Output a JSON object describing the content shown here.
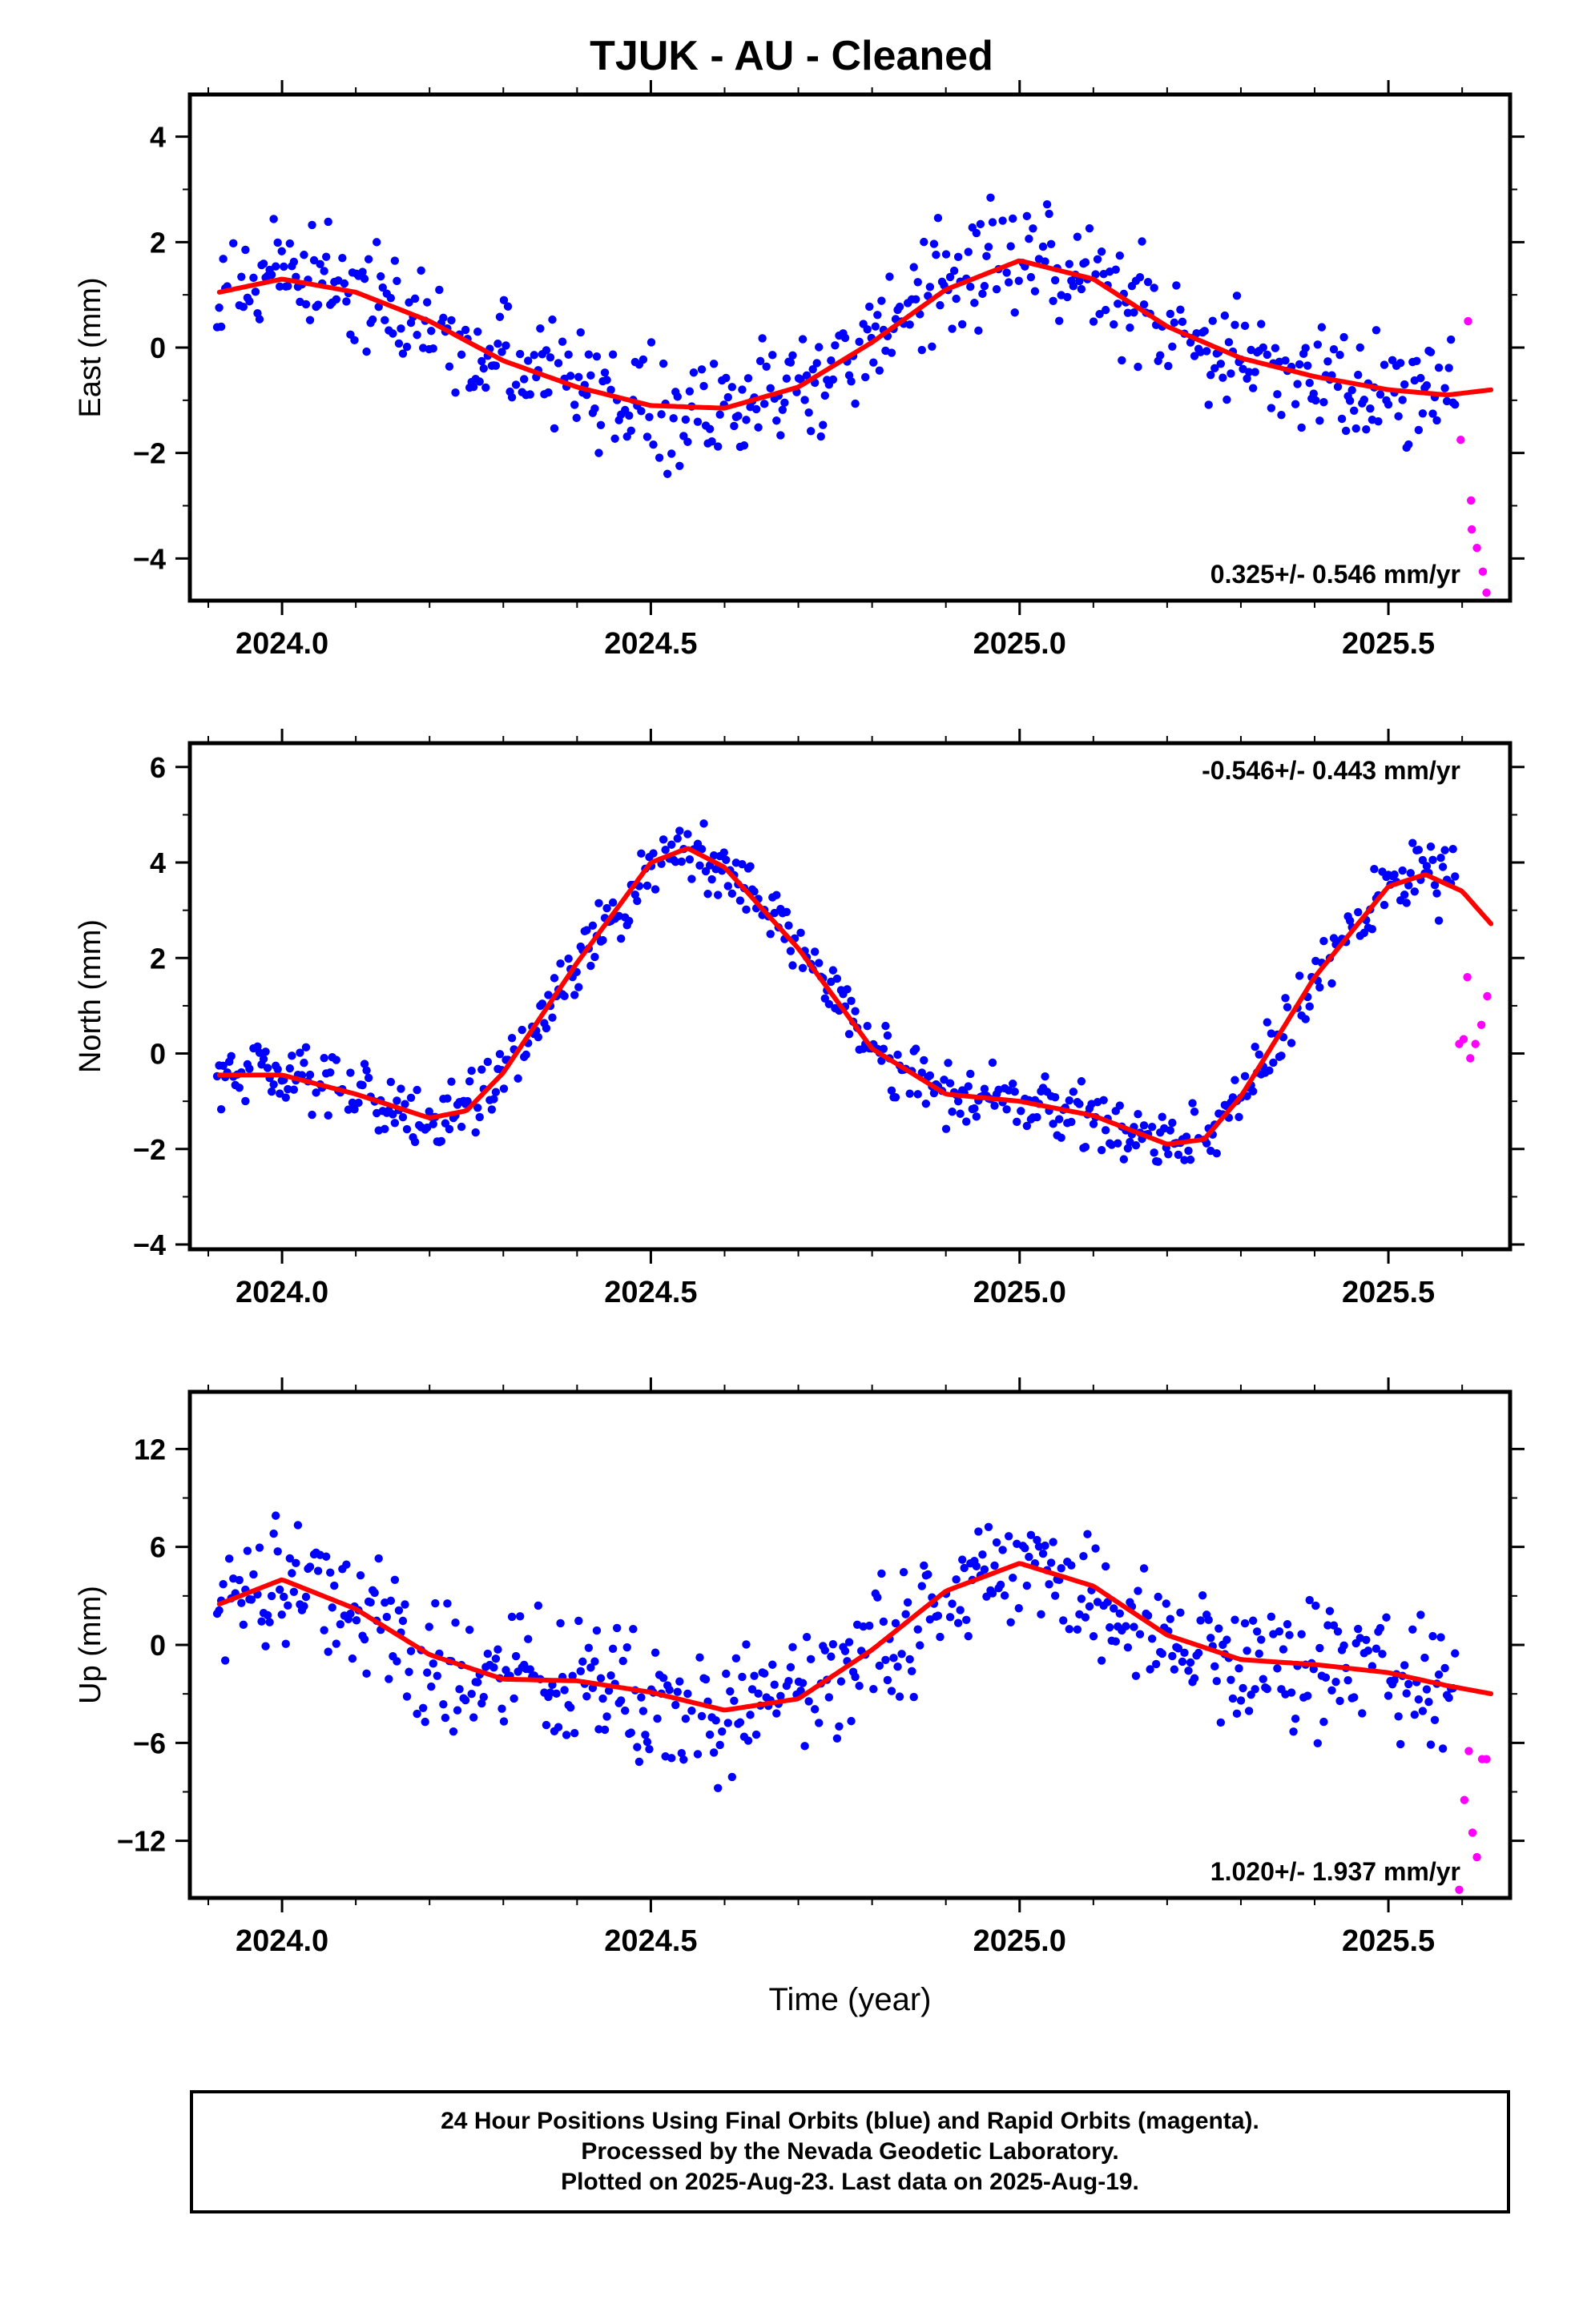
{
  "title": "TJUK  - AU - Cleaned",
  "footer": {
    "line1": "24 Hour Positions Using Final Orbits (blue) and Rapid Orbits (magenta).",
    "line2": "Processed by the Nevada Geodetic Laboratory.",
    "line3": "Plotted on 2025-Aug-23. Last data on 2025-Aug-19."
  },
  "colors": {
    "final": "#0000ff",
    "rapid": "#ff00ff",
    "fit": "#ff0000",
    "frame": "#000000"
  },
  "chart_data": [
    {
      "type": "scatter",
      "panel": "east",
      "ylabel": "East (mm)",
      "xlabel": "",
      "xlim": [
        2023.875,
        2025.665
      ],
      "ylim": [
        -4.8,
        4.8
      ],
      "xticks": [
        2024.0,
        2024.5,
        2025.0,
        2025.5
      ],
      "xtick_labels": [
        "2024.0",
        "2024.5",
        "2025.0",
        "2025.5"
      ],
      "yticks": [
        -4,
        -2,
        0,
        2,
        4
      ],
      "ytick_labels": [
        "−4",
        "−2",
        "0",
        "2",
        "4"
      ],
      "rate": "0.325+/- 0.546 mm/yr",
      "rate_position": "bottom-right",
      "fit": {
        "x": [
          2023.915,
          2024.0,
          2024.1,
          2024.2,
          2024.3,
          2024.4,
          2024.5,
          2024.6,
          2024.7,
          2024.8,
          2024.9,
          2025.0,
          2025.1,
          2025.2,
          2025.3,
          2025.4,
          2025.5,
          2025.58,
          2025.64
        ],
        "y": [
          1.05,
          1.3,
          1.05,
          0.5,
          -0.25,
          -0.75,
          -1.1,
          -1.15,
          -0.75,
          0.1,
          1.1,
          1.65,
          1.3,
          0.4,
          -0.2,
          -0.55,
          -0.8,
          -0.9,
          -0.8
        ]
      },
      "rapid": {
        "x": [
          2025.598,
          2025.608,
          2025.612,
          2025.613,
          2025.62,
          2025.628,
          2025.633
        ],
        "y": [
          -1.75,
          0.5,
          -2.9,
          -3.45,
          -3.8,
          -4.25,
          -4.65
        ]
      }
    },
    {
      "type": "scatter",
      "panel": "north",
      "ylabel": "North (mm)",
      "xlabel": "",
      "xlim": [
        2023.875,
        2025.665
      ],
      "ylim": [
        -4.1,
        6.5
      ],
      "xticks": [
        2024.0,
        2024.5,
        2025.0,
        2025.5
      ],
      "xtick_labels": [
        "2024.0",
        "2024.5",
        "2025.0",
        "2025.5"
      ],
      "yticks": [
        -4,
        -2,
        0,
        2,
        4,
        6
      ],
      "ytick_labels": [
        "−4",
        "−2",
        "0",
        "2",
        "4",
        "6"
      ],
      "rate": "-0.546+/- 0.443 mm/yr",
      "rate_position": "top-right",
      "fit": {
        "x": [
          2023.915,
          2024.0,
          2024.1,
          2024.2,
          2024.25,
          2024.3,
          2024.4,
          2024.5,
          2024.55,
          2024.6,
          2024.7,
          2024.8,
          2024.9,
          2025.0,
          2025.1,
          2025.2,
          2025.25,
          2025.3,
          2025.4,
          2025.5,
          2025.55,
          2025.6,
          2025.64
        ],
        "y": [
          -0.45,
          -0.45,
          -0.85,
          -1.35,
          -1.2,
          -0.4,
          1.9,
          4.0,
          4.3,
          3.9,
          2.2,
          0.1,
          -0.85,
          -1.0,
          -1.3,
          -1.9,
          -1.8,
          -0.9,
          1.6,
          3.5,
          3.75,
          3.4,
          2.7
        ]
      },
      "rapid": {
        "x": [
          2025.596,
          2025.602,
          2025.607,
          2025.611,
          2025.618,
          2025.626,
          2025.634
        ],
        "y": [
          0.2,
          0.3,
          1.6,
          -0.1,
          0.2,
          0.6,
          1.2
        ]
      }
    },
    {
      "type": "scatter",
      "panel": "up",
      "ylabel": "Up (mm)",
      "xlabel": "Time (year)",
      "xlim": [
        2023.875,
        2025.665
      ],
      "ylim": [
        -15.5,
        15.5
      ],
      "xticks": [
        2024.0,
        2024.5,
        2025.0,
        2025.5
      ],
      "xtick_labels": [
        "2024.0",
        "2024.5",
        "2025.0",
        "2025.5"
      ],
      "yticks": [
        -12,
        -6,
        0,
        6,
        12
      ],
      "ytick_labels": [
        "−12",
        "−6",
        "0",
        "6",
        "12"
      ],
      "rate": "1.020+/- 1.937 mm/yr",
      "rate_position": "bottom-right",
      "fit": {
        "x": [
          2023.915,
          2024.0,
          2024.1,
          2024.2,
          2024.3,
          2024.4,
          2024.5,
          2024.6,
          2024.7,
          2024.8,
          2024.9,
          2025.0,
          2025.1,
          2025.2,
          2025.3,
          2025.4,
          2025.5,
          2025.58,
          2025.64
        ],
        "y": [
          2.5,
          4.0,
          2.2,
          -0.6,
          -2.1,
          -2.2,
          -2.9,
          -4.0,
          -3.3,
          -0.3,
          3.3,
          5.0,
          3.6,
          0.6,
          -0.9,
          -1.2,
          -1.7,
          -2.5,
          -3.0
        ]
      },
      "rapid": {
        "x": [
          2025.596,
          2025.603,
          2025.609,
          2025.614,
          2025.62,
          2025.627,
          2025.633
        ],
        "y": [
          -15.0,
          -9.5,
          -6.5,
          -11.5,
          -13.0,
          -7.0,
          -7.0
        ]
      }
    }
  ]
}
